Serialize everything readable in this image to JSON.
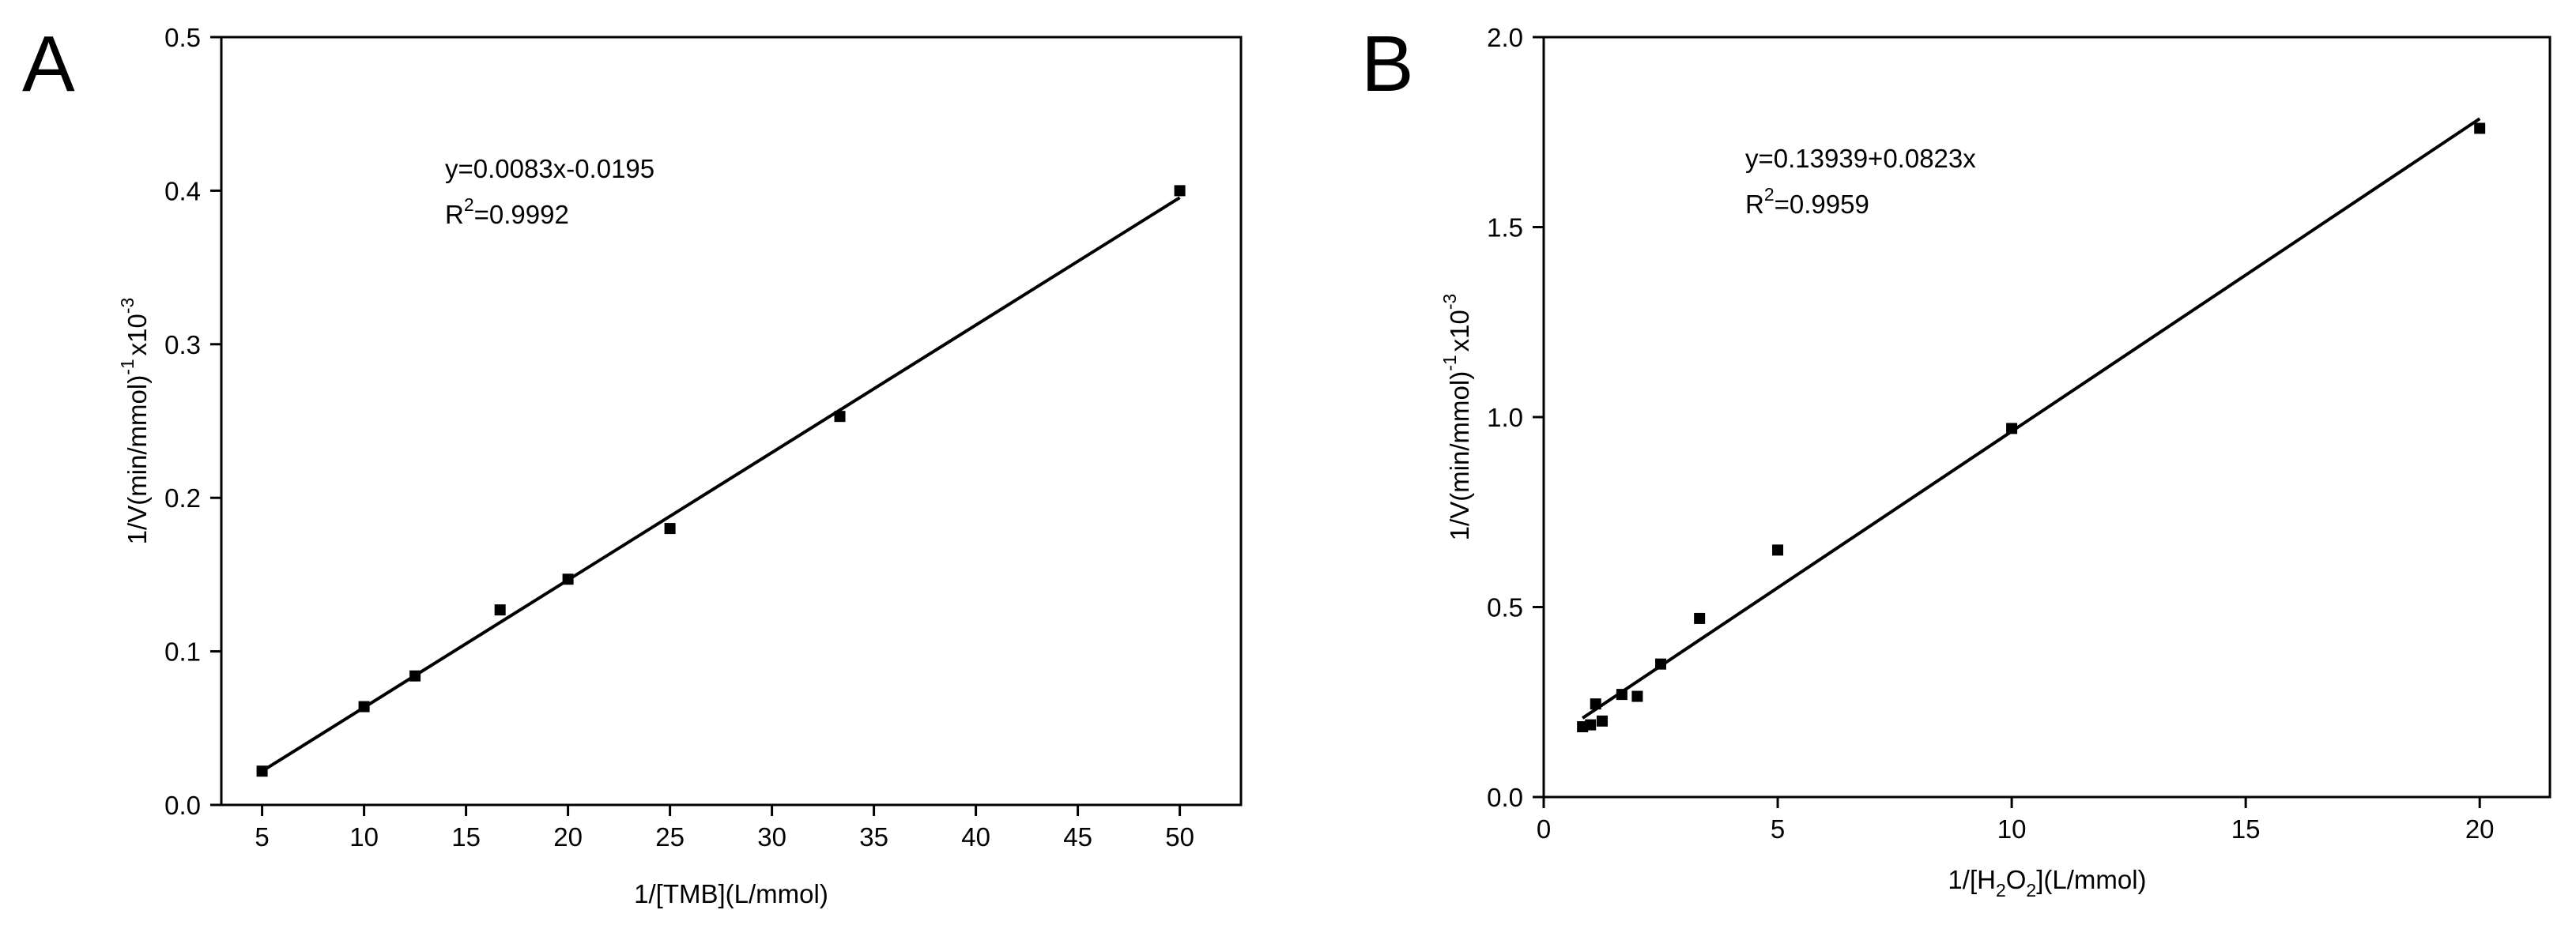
{
  "chart_data": [
    {
      "type": "scatter",
      "panel": "A",
      "xlabel": "1/[TMB](L/mmol)",
      "ylabel": "1/V(min/mmol)",
      "ylabel_sup": "-1",
      "ylabel_suffix": "x10",
      "ylabel_suffix_sup": "-3",
      "xlim": [
        3,
        53
      ],
      "ylim": [
        0,
        0.5
      ],
      "xticks": [
        5,
        10,
        15,
        20,
        25,
        30,
        35,
        40,
        45,
        50
      ],
      "xtick_labels": [
        "5",
        "10",
        "15",
        "20",
        "25",
        "30",
        "35",
        "40",
        "45",
        "50"
      ],
      "yticks": [
        0,
        0.1,
        0.2,
        0.3,
        0.4,
        0.5
      ],
      "ytick_labels": [
        "0.0",
        "0.1",
        "0.2",
        "0.3",
        "0.4",
        "0.5"
      ],
      "grid": false,
      "series": [
        {
          "x": [
            5,
            10,
            12.5,
            16.67,
            20,
            25,
            33.33,
            50
          ],
          "y": [
            0.022,
            0.064,
            0.084,
            0.127,
            0.147,
            0.18,
            0.253,
            0.4
          ]
        }
      ],
      "fit": {
        "slope": 0.0083,
        "intercept": -0.0195,
        "x_range": [
          5,
          50
        ]
      },
      "equation": "y=0.0083x-0.0195",
      "r2_prefix": "R",
      "r2_sup": "2",
      "r2_value": "=0.9992"
    },
    {
      "type": "scatter",
      "panel": "B",
      "xlabel_prefix": "1/[H",
      "xlabel_sub1": "2",
      "xlabel_mid": "O",
      "xlabel_sub2": "2",
      "xlabel_suffix": "](L/mmol)",
      "ylabel": "1/V(min/mmol)",
      "ylabel_sup": "-1",
      "ylabel_suffix": "x10",
      "ylabel_suffix_sup": "-3",
      "xlim": [
        0,
        21.5
      ],
      "ylim": [
        0,
        2.0
      ],
      "xticks": [
        0,
        5,
        10,
        15,
        20
      ],
      "xtick_labels": [
        "0",
        "5",
        "10",
        "15",
        "20"
      ],
      "yticks": [
        0,
        0.5,
        1.0,
        1.5,
        2.0
      ],
      "ytick_labels": [
        "0.0",
        "0.5",
        "1.0",
        "1.5",
        "2.0"
      ],
      "grid": false,
      "series": [
        {
          "x": [
            0.83,
            1.0,
            1.11,
            1.25,
            1.67,
            2.0,
            2.5,
            3.33,
            5.0,
            10.0,
            20.0
          ],
          "y": [
            0.185,
            0.19,
            0.245,
            0.2,
            0.27,
            0.265,
            0.35,
            0.47,
            0.65,
            0.97,
            1.76
          ]
        }
      ],
      "fit": {
        "slope": 0.0823,
        "intercept": 0.13939,
        "x_range": [
          0.83,
          20
        ]
      },
      "equation": "y=0.13939+0.0823x",
      "r2_prefix": "R",
      "r2_sup": "2",
      "r2_value": "=0.9959"
    }
  ]
}
